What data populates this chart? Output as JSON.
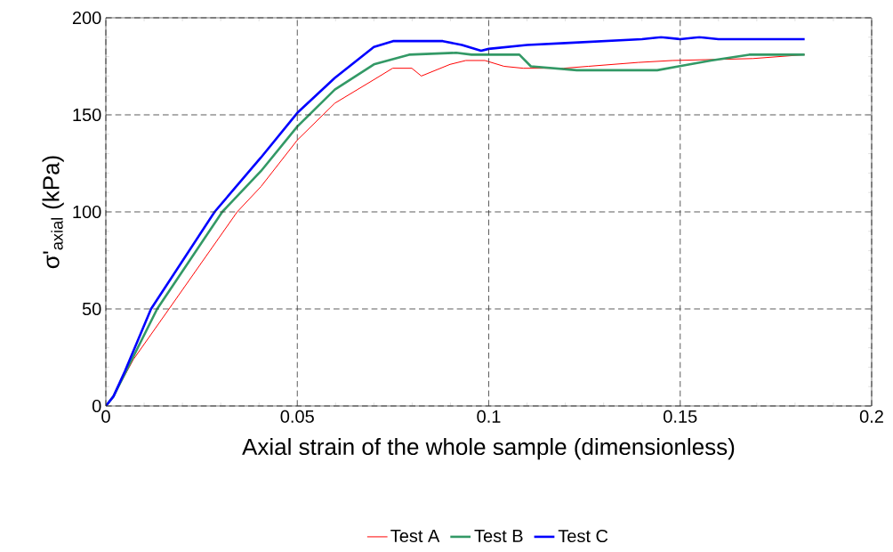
{
  "chart_data": {
    "type": "line",
    "xlabel": "Axial strain of the whole sample (dimensionless)",
    "ylabel": "σ'$_{axial}$ (kPa)",
    "xlim": [
      0,
      0.2
    ],
    "ylim": [
      0,
      200
    ],
    "xticks": [
      0,
      0.05,
      0.1,
      0.15,
      0.2
    ],
    "yticks": [
      0,
      50,
      100,
      150,
      200
    ],
    "grid": true,
    "legend": "bottom",
    "marker": "none",
    "line_style": "solid",
    "series": [
      {
        "name": "Test A",
        "color": "#ff0000",
        "x": [
          0,
          0.002,
          0.0072,
          0.0165,
          0.0343,
          0.0405,
          0.05,
          0.0598,
          0.0699,
          0.0749,
          0.0799,
          0.0824,
          0.0899,
          0.094,
          0.099,
          0.104,
          0.109,
          0.1195,
          0.126,
          0.139,
          0.148,
          0.169,
          0.1825
        ],
        "values": [
          0,
          5,
          24,
          50,
          100,
          113,
          137,
          156,
          168,
          174,
          174,
          170,
          176,
          178,
          178,
          175,
          174,
          174,
          175,
          177,
          178,
          179,
          181
        ]
      },
      {
        "name": "Test B",
        "color": "#339966",
        "x": [
          0,
          0.002,
          0.0134,
          0.0304,
          0.0405,
          0.05,
          0.0598,
          0.07,
          0.0792,
          0.0915,
          0.0955,
          0.108,
          0.111,
          0.123,
          0.144,
          0.1496,
          0.158,
          0.168,
          0.1825
        ],
        "values": [
          0,
          5,
          50,
          100,
          121,
          144,
          163,
          176,
          181,
          182,
          181,
          181,
          175,
          173,
          173,
          175,
          178,
          181,
          181
        ]
      },
      {
        "name": "Test C",
        "color": "#0000ff",
        "x": [
          0,
          0.002,
          0.005,
          0.0118,
          0.0284,
          0.0405,
          0.05,
          0.0598,
          0.07,
          0.075,
          0.088,
          0.093,
          0.098,
          0.1,
          0.11,
          0.12,
          0.13,
          0.14,
          0.145,
          0.15,
          0.155,
          0.16,
          0.17,
          0.1825
        ],
        "values": [
          0,
          5,
          18,
          50,
          100,
          128,
          151,
          169,
          185,
          188,
          188,
          186,
          183,
          184,
          186,
          187,
          188,
          189,
          190,
          189,
          190,
          189,
          189,
          189
        ]
      }
    ]
  }
}
